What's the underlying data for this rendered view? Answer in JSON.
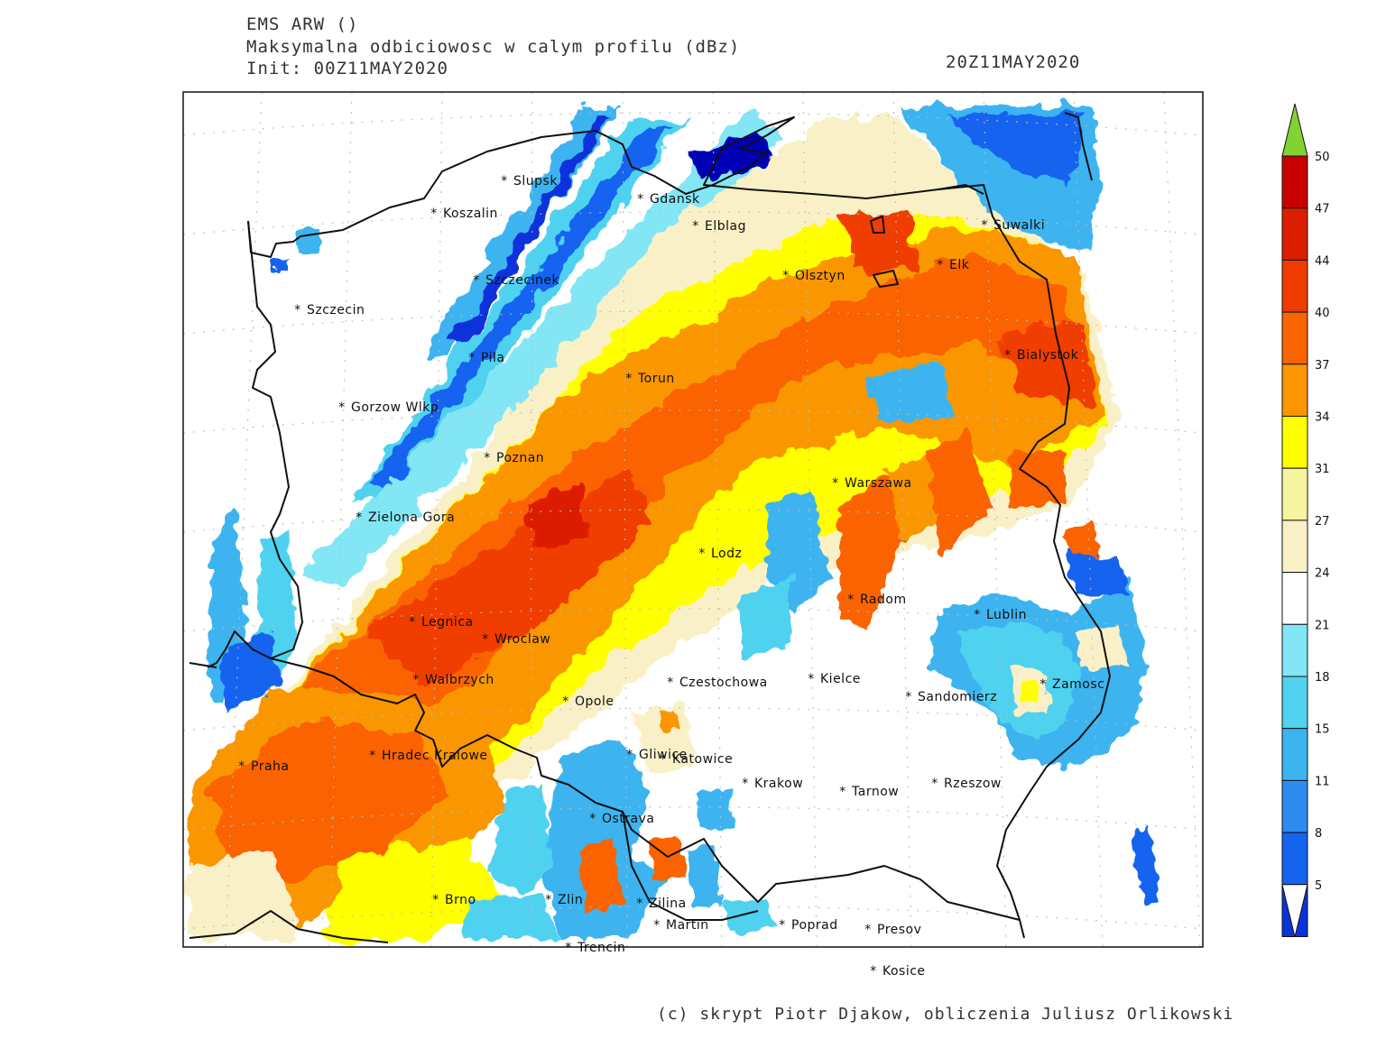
{
  "header": {
    "model": "EMS ARW ()",
    "product": "Maksymalna odbiciowosc w calym profilu (dBz)",
    "init": "Init: 00Z11MAY2020",
    "valid_time": "20Z11MAY2020"
  },
  "credit": "(c) skrypt Piotr Djakow, obliczenia Juliusz Orlikowski",
  "cities": [
    {
      "name": "Slupsk"
    },
    {
      "name": "Koszalin"
    },
    {
      "name": "Gdansk"
    },
    {
      "name": "Elblag"
    },
    {
      "name": "Suwalki"
    },
    {
      "name": "Szczecinek"
    },
    {
      "name": "Olsztyn"
    },
    {
      "name": "Elk"
    },
    {
      "name": "Szczecin"
    },
    {
      "name": "Pila"
    },
    {
      "name": "Bialystok"
    },
    {
      "name": "Torun"
    },
    {
      "name": "Gorzow Wlkp"
    },
    {
      "name": "Poznan"
    },
    {
      "name": "Warszawa"
    },
    {
      "name": "Zielona Gora"
    },
    {
      "name": "Lodz"
    },
    {
      "name": "Radom"
    },
    {
      "name": "Lublin"
    },
    {
      "name": "Legnica"
    },
    {
      "name": "Wroclaw"
    },
    {
      "name": "Walbrzych"
    },
    {
      "name": "Czestochowa"
    },
    {
      "name": "Kielce"
    },
    {
      "name": "Zamosc"
    },
    {
      "name": "Opole"
    },
    {
      "name": "Sandomierz"
    },
    {
      "name": "Gliwice"
    },
    {
      "name": "Katowice"
    },
    {
      "name": "Hradec Kralowe"
    },
    {
      "name": "Praha"
    },
    {
      "name": "Krakow"
    },
    {
      "name": "Tarnow"
    },
    {
      "name": "Rzeszow"
    },
    {
      "name": "Ostrava"
    },
    {
      "name": "Brno"
    },
    {
      "name": "Zlin"
    },
    {
      "name": "Zilina"
    },
    {
      "name": "Martin"
    },
    {
      "name": "Poprad"
    },
    {
      "name": "Presov"
    },
    {
      "name": "Trencin"
    },
    {
      "name": "Kosice"
    }
  ],
  "colorbar": {
    "levels": [
      "5",
      "8",
      "11",
      "15",
      "18",
      "21",
      "24",
      "27",
      "31",
      "34",
      "37",
      "40",
      "44",
      "47",
      "50"
    ],
    "colors": [
      "#0000b4",
      "#0a32dc",
      "#1464f0",
      "#2d8cf0",
      "#3cb4f0",
      "#50d2f0",
      "#82e6f5",
      "#ffffff",
      "#faf0c8",
      "#f5f5a0",
      "#ffff00",
      "#fa9600",
      "#fa6400",
      "#f03c00",
      "#dc1e00",
      "#c80000"
    ],
    "over_color": "#82d232",
    "under_color": "#ffffff"
  }
}
